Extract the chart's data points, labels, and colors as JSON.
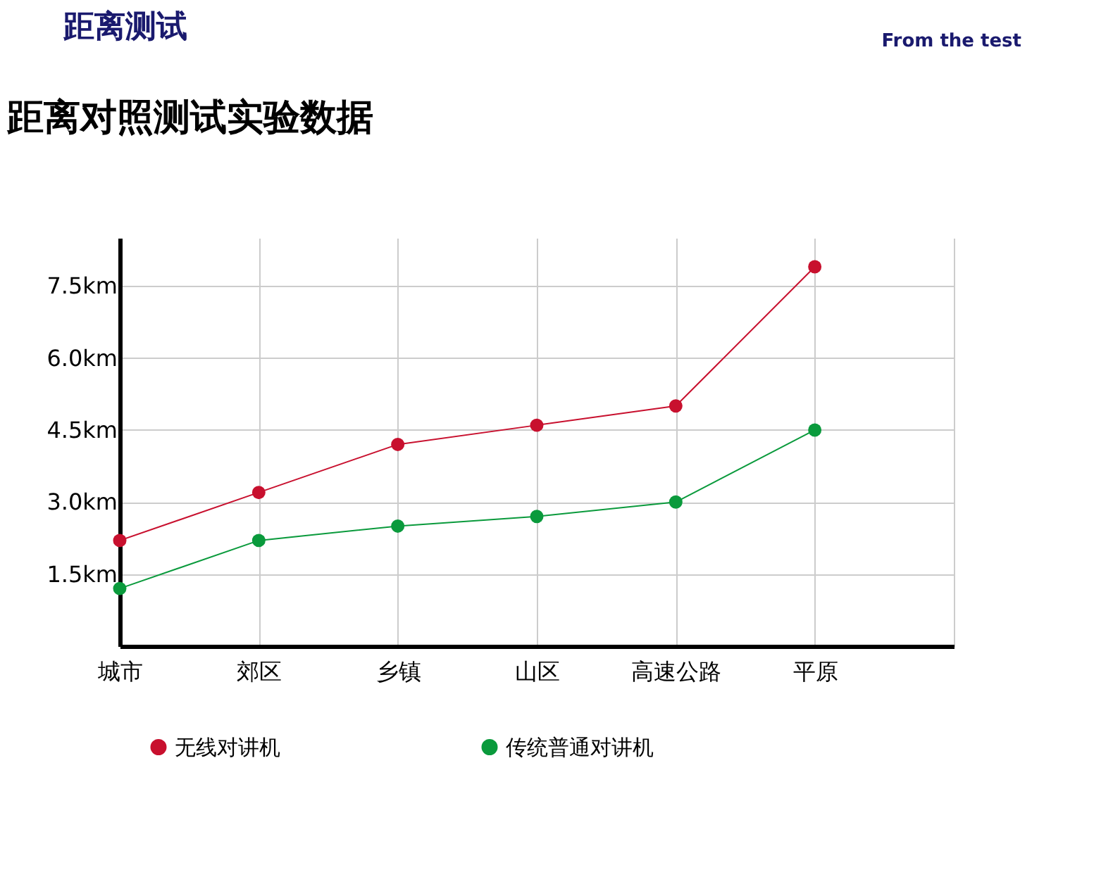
{
  "chart_data": {
    "type": "line",
    "title": "距离对照测试实验数据",
    "annotations": [
      "距离测试",
      "From the test"
    ],
    "categories": [
      "城市",
      "郊区",
      "乡镇",
      "山区",
      "高速公路",
      "平原",
      null
    ],
    "series": [
      {
        "name": "无线对讲机",
        "color": "#c8102e",
        "values": [
          2.2,
          3.2,
          4.2,
          4.6,
          5.0,
          7.9,
          null
        ]
      },
      {
        "name": "传统普通对讲机",
        "color": "#0a9a3c",
        "values": [
          1.2,
          2.2,
          2.5,
          2.7,
          3.0,
          4.5,
          null
        ]
      }
    ],
    "ylim": [
      0,
      8.5
    ],
    "yticks": [
      {
        "value": 1.5,
        "label": "1.5km"
      },
      {
        "value": 3.0,
        "label": "3.0km"
      },
      {
        "value": 4.5,
        "label": "4.5km"
      },
      {
        "value": 6.0,
        "label": "6.0km"
      },
      {
        "value": 7.5,
        "label": "7.5km"
      }
    ],
    "grid": true,
    "legend": "bottom",
    "marker": "circle",
    "line_style": "solid"
  }
}
